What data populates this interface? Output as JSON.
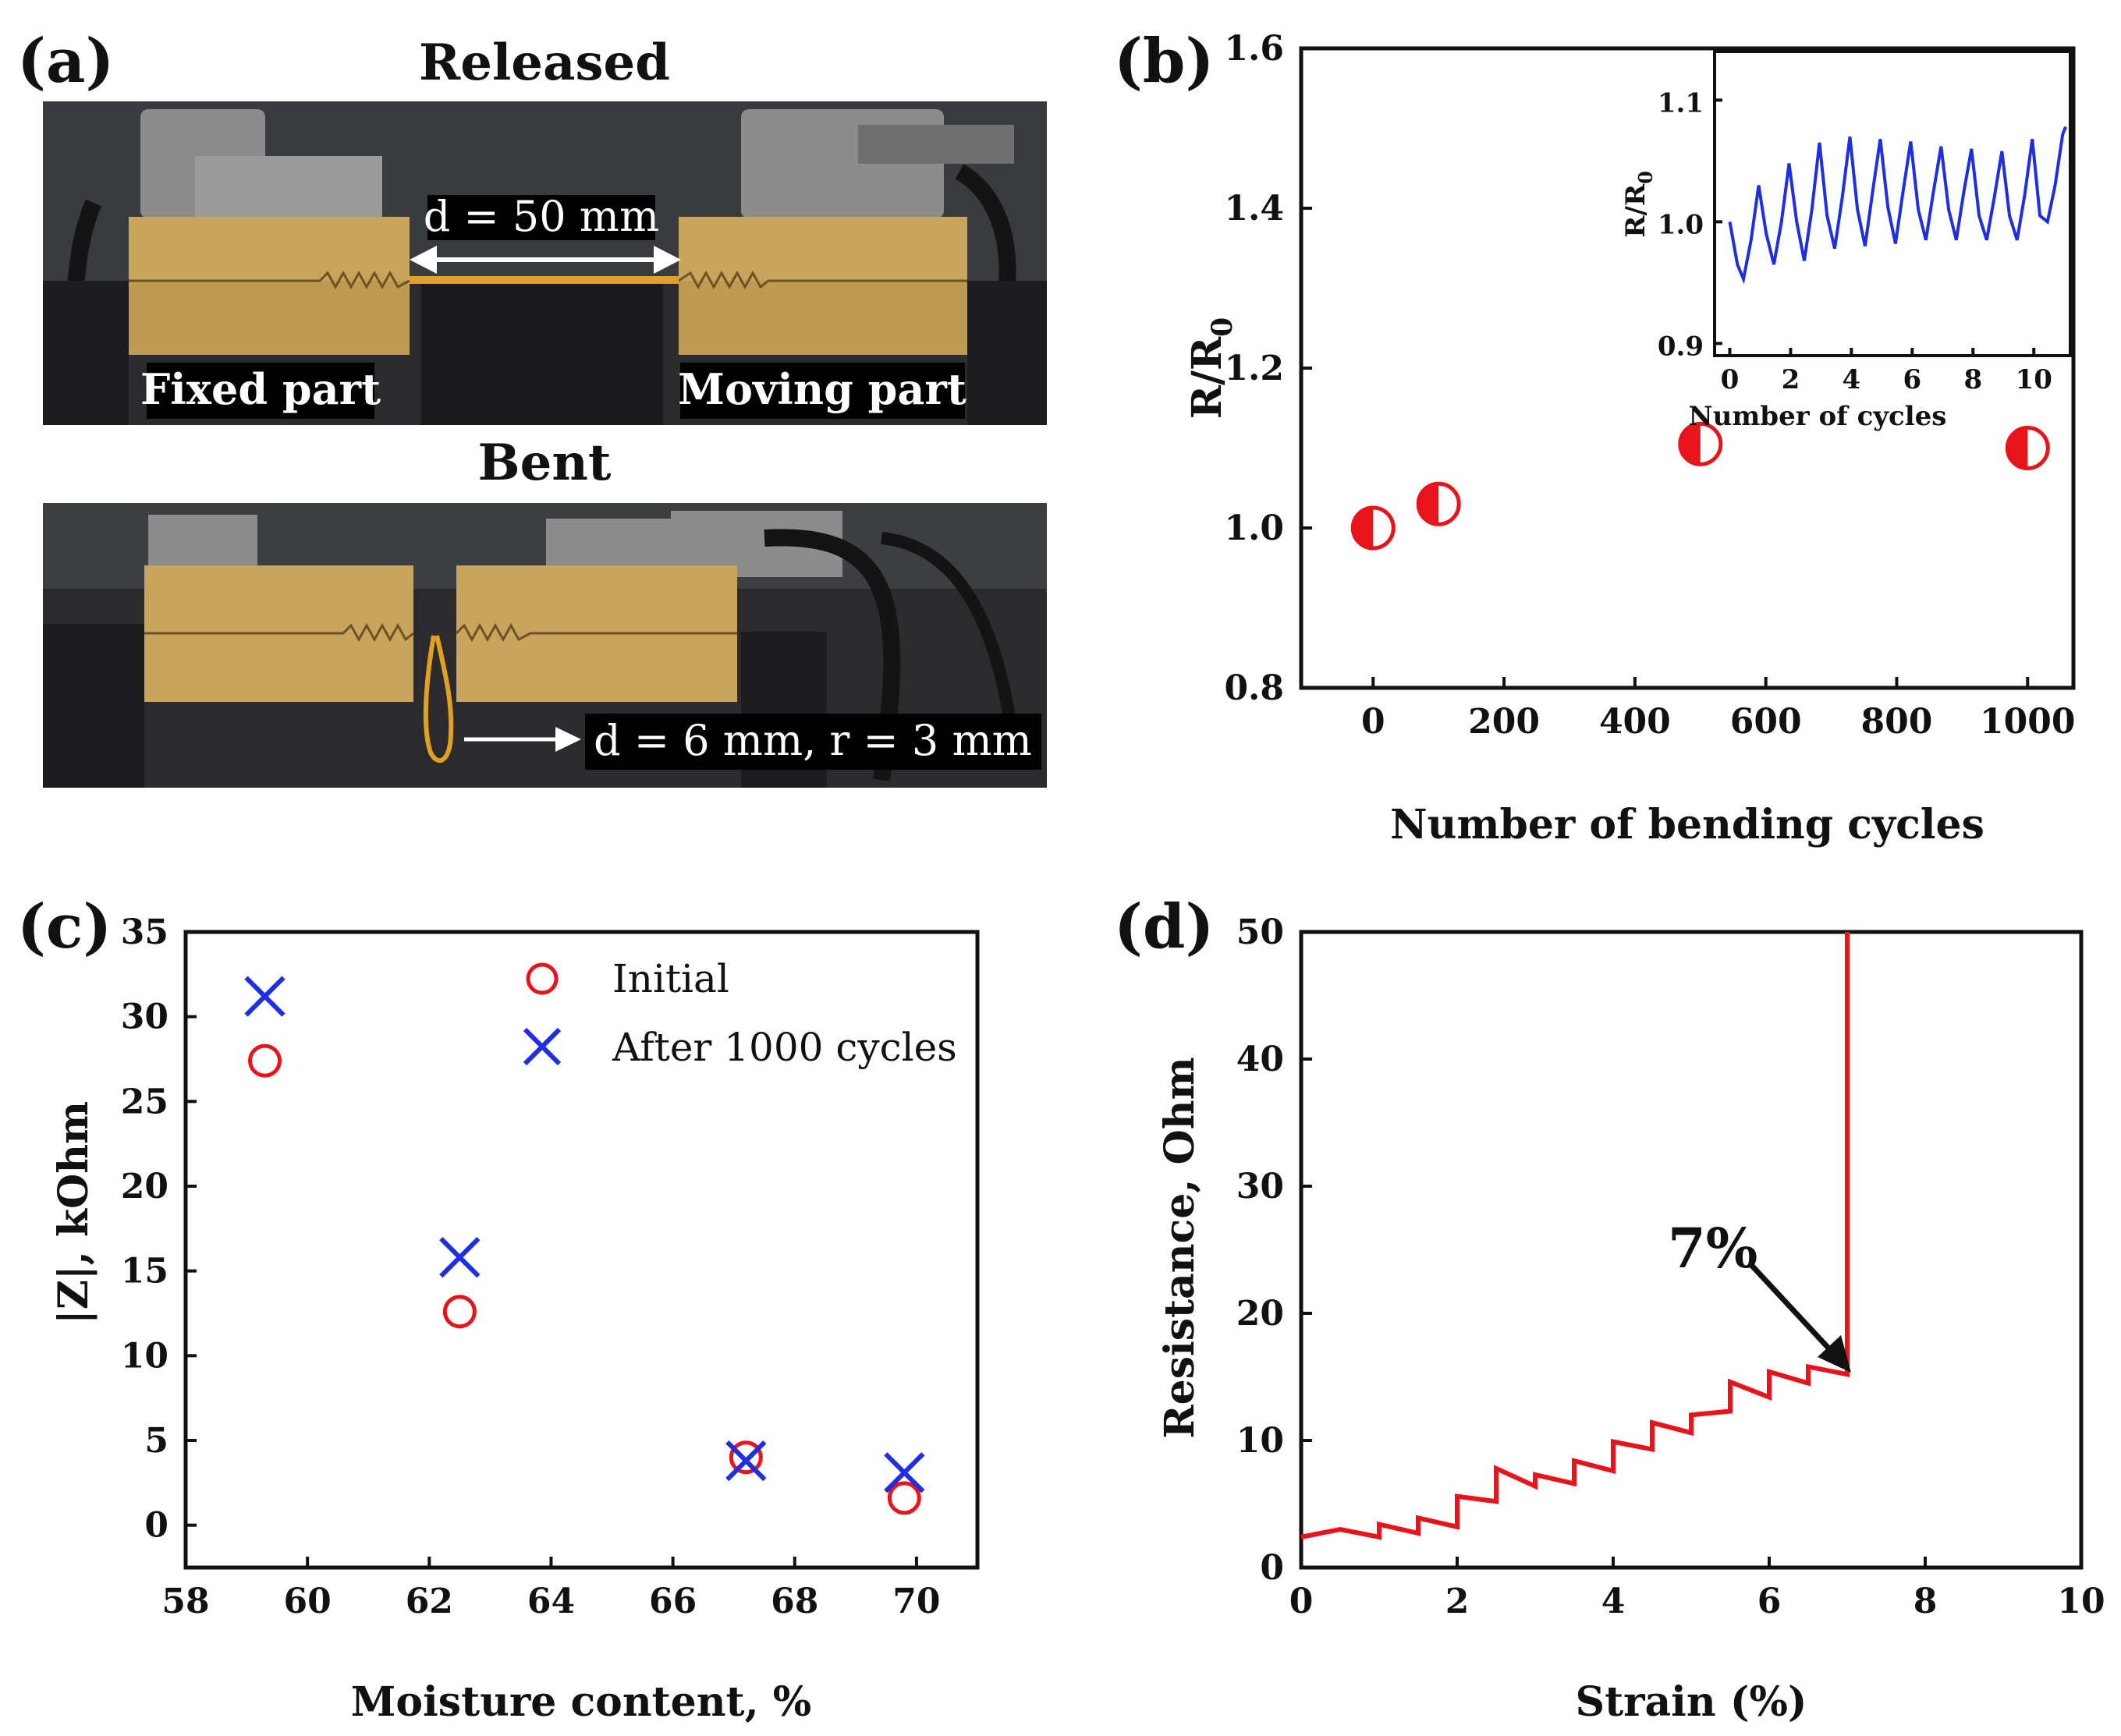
{
  "panel_a": {
    "label": "(a)",
    "released_title": "Released",
    "bent_title": "Bent",
    "released_distance": "d = 50 mm",
    "fixed_part": "Fixed part",
    "moving_part": "Moving part",
    "bent_distance": "d = 6 mm, r = 3 mm",
    "colors": {
      "brass": "#c8a45c",
      "brass_dark": "#a8843e",
      "background": "#2b2b2e",
      "sample": "#e0a020"
    }
  },
  "chart_data": [
    {
      "panel": "b",
      "label": "(b)",
      "type": "scatter",
      "title": "",
      "xlabel": "Number of bending cycles",
      "ylabel": "R/R",
      "ylabel_sub": "0",
      "xlim": [
        -110,
        1070
      ],
      "ylim": [
        0.8,
        1.6
      ],
      "xticks": [
        0,
        200,
        400,
        600,
        800,
        1000
      ],
      "yticks": [
        0.8,
        1.0,
        1.2,
        1.4,
        1.6
      ],
      "xtick_labels": [
        "0",
        "200",
        "400",
        "600",
        "800",
        "1000"
      ],
      "ytick_labels": [
        "0.8",
        "1.0",
        "1.2",
        "1.4",
        "1.6"
      ],
      "marker": "half-filled-circle",
      "color": "#e8141b",
      "x": [
        0,
        100,
        500,
        1000
      ],
      "y": [
        1.0,
        1.03,
        1.105,
        1.1
      ],
      "inset": {
        "type": "line",
        "xlabel": "Number of cycles",
        "ylabel": "R/R",
        "ylabel_sub": "0",
        "xlim": [
          -0.5,
          11.2
        ],
        "ylim": [
          0.89,
          1.14
        ],
        "xticks": [
          0,
          2,
          4,
          6,
          8,
          10
        ],
        "yticks": [
          0.9,
          1.0,
          1.1
        ],
        "xtick_labels": [
          "0",
          "2",
          "4",
          "6",
          "8",
          "10"
        ],
        "ytick_labels": [
          "0.9",
          "1.0",
          "1.1"
        ],
        "color": "#1f2ee0",
        "x": [
          0,
          0.25,
          0.45,
          0.7,
          0.95,
          1.2,
          1.45,
          1.7,
          1.95,
          2.2,
          2.45,
          2.7,
          2.95,
          3.2,
          3.45,
          3.7,
          3.95,
          4.2,
          4.45,
          4.7,
          4.95,
          5.2,
          5.45,
          5.7,
          5.95,
          6.2,
          6.45,
          6.7,
          6.95,
          7.2,
          7.45,
          7.7,
          7.95,
          8.2,
          8.45,
          8.7,
          8.95,
          9.2,
          9.45,
          9.7,
          9.95,
          10.2,
          10.45,
          10.7,
          10.95,
          11.05
        ],
        "y": [
          1.0,
          0.965,
          0.953,
          0.985,
          1.03,
          0.99,
          0.965,
          1.0,
          1.048,
          1.0,
          0.968,
          1.01,
          1.065,
          1.005,
          0.978,
          1.02,
          1.07,
          1.01,
          0.98,
          1.025,
          1.068,
          1.012,
          0.982,
          1.025,
          1.066,
          1.01,
          0.985,
          1.025,
          1.062,
          1.01,
          0.985,
          1.025,
          1.06,
          1.005,
          0.985,
          1.02,
          1.058,
          1.005,
          0.985,
          1.022,
          1.068,
          1.005,
          1.0,
          1.03,
          1.072,
          1.078
        ]
      }
    },
    {
      "panel": "c",
      "label": "(c)",
      "type": "scatter",
      "title": "",
      "xlabel": "Moisture content, %",
      "ylabel": "|Z|, kOhm",
      "xlim": [
        58,
        71
      ],
      "ylim": [
        -2.5,
        35
      ],
      "xticks": [
        58,
        60,
        62,
        64,
        66,
        68,
        70
      ],
      "yticks": [
        0,
        5,
        10,
        15,
        20,
        25,
        30,
        35
      ],
      "xtick_labels": [
        "58",
        "60",
        "62",
        "64",
        "66",
        "68",
        "70"
      ],
      "ytick_labels": [
        "0",
        "5",
        "10",
        "15",
        "20",
        "25",
        "30",
        "35"
      ],
      "legend_position": "top-right",
      "series": [
        {
          "name": "Initial",
          "marker": "open-circle",
          "color": "#e8141b",
          "x": [
            59.3,
            62.5,
            67.2,
            69.8
          ],
          "y": [
            27.4,
            12.6,
            4.0,
            1.6
          ]
        },
        {
          "name": "After 1000 cycles",
          "marker": "x",
          "color": "#1f2ee0",
          "x": [
            59.3,
            62.5,
            67.2,
            69.8
          ],
          "y": [
            31.2,
            15.8,
            3.8,
            3.1
          ]
        }
      ]
    },
    {
      "panel": "d",
      "label": "(d)",
      "type": "line",
      "title": "",
      "xlabel": "Strain (%)",
      "ylabel": "Resistance, Ohm",
      "xlim": [
        0,
        10
      ],
      "ylim": [
        0,
        50
      ],
      "xticks": [
        0,
        2,
        4,
        6,
        8,
        10
      ],
      "yticks": [
        0,
        10,
        20,
        30,
        40,
        50
      ],
      "xtick_labels": [
        "0",
        "2",
        "4",
        "6",
        "8",
        "10"
      ],
      "ytick_labels": [
        "0",
        "10",
        "20",
        "30",
        "40",
        "50"
      ],
      "color": "#e8141b",
      "annotation": "7%",
      "x": [
        0,
        0.5,
        1.0,
        1.0,
        1.5,
        1.5,
        2.0,
        2.0,
        2.5,
        2.5,
        3.0,
        3.0,
        3.5,
        3.5,
        4.0,
        4.0,
        4.5,
        4.5,
        5.0,
        5.0,
        5.5,
        5.5,
        6.0,
        6.0,
        6.5,
        6.5,
        7.0,
        7.0
      ],
      "y": [
        2.4,
        3.0,
        2.4,
        3.4,
        2.7,
        3.9,
        3.2,
        5.6,
        5.2,
        7.8,
        6.4,
        7.3,
        6.6,
        8.4,
        7.6,
        9.9,
        9.3,
        11.4,
        10.6,
        12.0,
        12.3,
        14.6,
        13.4,
        15.4,
        14.5,
        15.8,
        15.2,
        50
      ]
    }
  ]
}
